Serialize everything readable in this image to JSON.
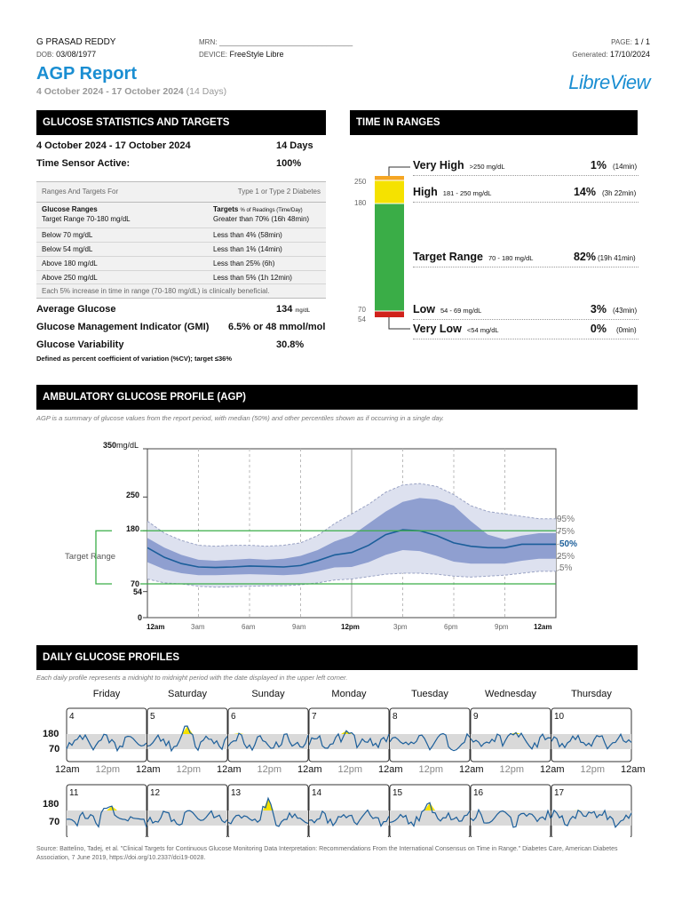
{
  "patient": {
    "name": "G PRASAD REDDY",
    "dob_label": "DOB:",
    "dob": "03/08/1977",
    "mrn_label": "MRN:",
    "mrn": "______________________________",
    "device_label": "DEVICE:",
    "device": "FreeStyle Libre",
    "page_label": "PAGE:",
    "page": "1 / 1",
    "generated_label": "Generated:",
    "generated": "17/10/2024"
  },
  "title": "AGP Report",
  "period": "4 October 2024 - 17 October 2024",
  "period_days": "(14 Days)",
  "brand": "LibreView",
  "colors": {
    "accent": "#1a8ed2",
    "very_high": "#f5a623",
    "high": "#f5e200",
    "target": "#3aad47",
    "low": "#d0221b",
    "very_low": "#8b1010"
  },
  "stats": {
    "header": "GLUCOSE STATISTICS AND TARGETS",
    "period": "4 October 2024 - 17 October 2024",
    "days": "14 Days",
    "active_label": "Time Sensor Active:",
    "active": "100%",
    "table_head_left": "Ranges And Targets For",
    "table_head_right": "Type 1 or Type 2 Diabetes",
    "col1_head": "Glucose Ranges",
    "col2_head": "Targets",
    "col2_head_small": "% of Readings (Time/Day)",
    "rows": [
      [
        "Target Range 70-180 mg/dL",
        "Greater than 70% (16h 48min)"
      ],
      [
        "Below 70 mg/dL",
        "Less than 4% (58min)"
      ],
      [
        "Below 54 mg/dL",
        "Less than 1% (14min)"
      ],
      [
        "Above 180 mg/dL",
        "Less than 25% (6h)"
      ],
      [
        "Above 250 mg/dL",
        "Less than 5% (1h 12min)"
      ]
    ],
    "note": "Each 5% increase in time in range (70-180 mg/dL) is clinically beneficial.",
    "avg_label": "Average Glucose",
    "avg": "134",
    "avg_unit": "mg/dL",
    "gmi_label": "Glucose Management Indicator (GMI)",
    "gmi": "6.5% or 48 mmol/mol",
    "var_label": "Glucose Variability",
    "var": "30.8%",
    "var_note": "Defined as percent coefficient of variation (%CV); target ≤36%"
  },
  "tir": {
    "header": "TIME IN RANGES",
    "axis": [
      "250",
      "180",
      "70",
      "54"
    ],
    "ranges": [
      {
        "label": "Very High",
        "range": ">250 mg/dL",
        "pct": "1%",
        "time": "(14min)",
        "frac": 0.01
      },
      {
        "label": "High",
        "range": "181 - 250 mg/dL",
        "pct": "14%",
        "time": "(3h 22min)",
        "frac": 0.14
      },
      {
        "label": "Target Range",
        "range": "70 - 180 mg/dL",
        "pct": "82%",
        "time": "(19h 41min)",
        "frac": 0.82
      },
      {
        "label": "Low",
        "range": "54 - 69 mg/dL",
        "pct": "3%",
        "time": "(43min)",
        "frac": 0.03
      },
      {
        "label": "Very Low",
        "range": "<54 mg/dL",
        "pct": "0%",
        "time": "(0min)",
        "frac": 0.0
      }
    ]
  },
  "agp": {
    "header": "AMBULATORY GLUCOSE PROFILE (AGP)",
    "desc": "AGP is a summary of glucose values from the report period, with median (50%) and other percentiles shown as if occurring in a single day.",
    "y_unit": "mg/dL",
    "target_label": "Target Range",
    "percentile_labels": [
      "95%",
      "75%",
      "50%",
      "25%",
      "5%"
    ],
    "x_ticks": [
      "12am",
      "3am",
      "6am",
      "9am",
      "12pm",
      "3pm",
      "6pm",
      "9pm",
      "12am"
    ],
    "chart_data": {
      "type": "area",
      "x_hours": [
        0,
        1,
        2,
        3,
        4,
        5,
        6,
        7,
        8,
        9,
        10,
        11,
        12,
        13,
        14,
        15,
        16,
        17,
        18,
        19,
        20,
        21,
        22,
        23,
        24
      ],
      "ylim": [
        0,
        350
      ],
      "y_ticks": [
        0,
        54,
        70,
        180,
        250,
        350
      ],
      "target_range": [
        70,
        180
      ],
      "series": [
        {
          "name": "95%",
          "values": [
            200,
            175,
            160,
            150,
            148,
            150,
            150,
            148,
            150,
            155,
            170,
            195,
            215,
            235,
            260,
            275,
            278,
            272,
            255,
            232,
            220,
            215,
            210,
            205,
            205
          ]
        },
        {
          "name": "75%",
          "values": [
            165,
            145,
            130,
            120,
            118,
            120,
            122,
            120,
            122,
            128,
            140,
            158,
            170,
            195,
            220,
            240,
            248,
            245,
            232,
            200,
            172,
            162,
            170,
            175,
            175
          ]
        },
        {
          "name": "50%",
          "values": [
            145,
            125,
            112,
            105,
            104,
            105,
            107,
            106,
            105,
            108,
            118,
            130,
            135,
            150,
            172,
            182,
            180,
            170,
            155,
            148,
            145,
            145,
            152,
            152,
            152
          ]
        },
        {
          "name": "25%",
          "values": [
            115,
            100,
            92,
            88,
            88,
            89,
            90,
            89,
            88,
            90,
            96,
            104,
            105,
            115,
            130,
            140,
            138,
            128,
            116,
            112,
            112,
            112,
            118,
            122,
            122
          ]
        },
        {
          "name": "5%",
          "values": [
            80,
            72,
            70,
            65,
            63,
            64,
            65,
            66,
            66,
            68,
            72,
            78,
            80,
            85,
            90,
            92,
            92,
            90,
            86,
            84,
            86,
            88,
            92,
            96,
            96
          ]
        }
      ]
    }
  },
  "daily": {
    "header": "DAILY GLUCOSE PROFILES",
    "desc": "Each daily profile represents a midnight to midnight period with the date displayed in the upper left corner.",
    "weekdays": [
      "Friday",
      "Saturday",
      "Sunday",
      "Monday",
      "Tuesday",
      "Wednesday",
      "Thursday"
    ],
    "y_ticks": [
      "180",
      "70"
    ],
    "x_ticks": [
      "12am",
      "12pm",
      "12am",
      "12pm",
      "12am",
      "12pm",
      "12am",
      "12pm",
      "12am",
      "12pm",
      "12am",
      "12pm",
      "12am",
      "12pm",
      "12am"
    ],
    "week1": [
      "4",
      "5",
      "6",
      "7",
      "8",
      "9",
      "10"
    ],
    "week2": [
      "11",
      "12",
      "13",
      "14",
      "15",
      "16",
      "17"
    ]
  },
  "source": "Source: Battelino, Tadej, et al. \"Clinical Targets for Continuous Glucose Monitoring Data Interpretation: Recommendations From the International Consensus on Time in Range.\" Diabetes Care, American Diabetes Association, 7 June 2019, https://doi.org/10.2337/dci19-0028."
}
